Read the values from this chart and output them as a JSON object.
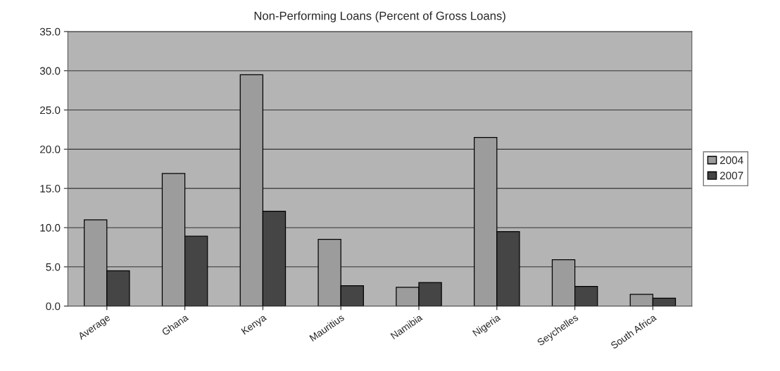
{
  "chart_data": {
    "type": "bar",
    "title": "Non-Performing Loans (Percent of Gross Loans)",
    "categories": [
      "Average",
      "Ghana",
      "Kenya",
      "Mauritius",
      "Namibia",
      "Nigeria",
      "Seychelles",
      "South Africa"
    ],
    "series": [
      {
        "name": "2004",
        "color": "#9c9c9c",
        "values": [
          11.0,
          16.9,
          29.5,
          8.5,
          2.4,
          21.5,
          5.9,
          1.5
        ]
      },
      {
        "name": "2007",
        "color": "#454545",
        "values": [
          4.5,
          8.9,
          12.1,
          2.6,
          3.0,
          9.5,
          2.5,
          1.0
        ]
      }
    ],
    "ylim": [
      0,
      35
    ],
    "yticks": [
      {
        "value": 0,
        "label": "0.0"
      },
      {
        "value": 5,
        "label": "5.0"
      },
      {
        "value": 10,
        "label": "10.0"
      },
      {
        "value": 15,
        "label": "15.0"
      },
      {
        "value": 20,
        "label": "20.0"
      },
      {
        "value": 25,
        "label": "25.0"
      },
      {
        "value": 30,
        "label": "30.0"
      },
      {
        "value": 35,
        "label": "35.0"
      }
    ],
    "grid": "y",
    "legend": "right"
  }
}
